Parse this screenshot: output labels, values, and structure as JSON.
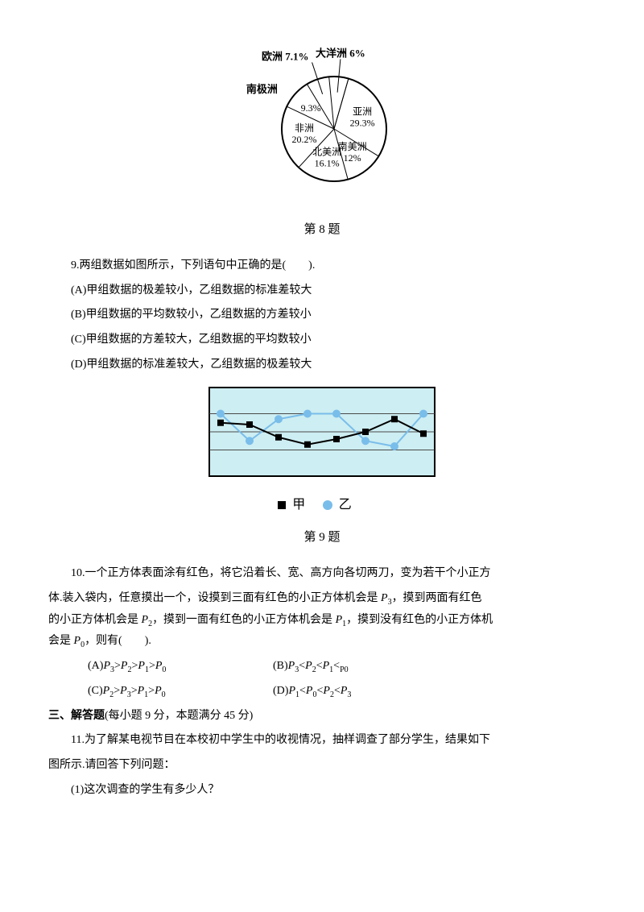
{
  "pie": {
    "caption": "第 8 题",
    "background": "#ffffff",
    "outline_color": "#000000",
    "slice_line_width": 1,
    "label_fontsize": 12,
    "outer_label_fontsize": 13,
    "slices": [
      {
        "name": "亚洲",
        "value": 29.3,
        "label1": "亚洲",
        "label2": "29.3%"
      },
      {
        "name": "南美洲",
        "value": 12.0,
        "label1": "南美洲",
        "label2": "12%"
      },
      {
        "name": "北美洲",
        "value": 16.1,
        "label1": "北美洲",
        "label2": "16.1%"
      },
      {
        "name": "非洲",
        "value": 20.2,
        "label1": "非洲",
        "label2": "20.2%"
      },
      {
        "name": "南极洲",
        "value": 9.3,
        "outer": "南极洲",
        "inner": "9.3%"
      },
      {
        "name": "欧洲",
        "value": 7.1,
        "outer": "欧洲 7.1%"
      },
      {
        "name": "大洋洲",
        "value": 6.0,
        "outer": "大洋洲 6%"
      }
    ]
  },
  "q9": {
    "stem": "9.两组数据如图所示，下列语句中正确的是(　　).",
    "a": "(A)甲组数据的极差较小，乙组数据的标准差较大",
    "b": "(B)甲组数据的平均数较小，乙组数据的方差较小",
    "c": "(C)甲组数据的方差较大，乙组数据的平均数较小",
    "d": "(D)甲组数据的标准差较大，乙组数据的极差较大"
  },
  "linechart": {
    "caption": "第 9 题",
    "bg": "#cdeef2",
    "border": "#000000",
    "grid_color": "#4a4a4a",
    "grid_rows": 4,
    "x_values": [
      1,
      2,
      3,
      4,
      5,
      6,
      7,
      8
    ],
    "series_jia": {
      "color": "#000000",
      "marker": "square",
      "marker_size": 8,
      "line_width": 2,
      "label": "甲",
      "y": [
        2.5,
        2.4,
        1.7,
        1.3,
        1.6,
        2.0,
        2.7,
        1.9
      ]
    },
    "series_yi": {
      "color": "#79bdea",
      "marker": "circle",
      "marker_size": 10,
      "line_width": 2,
      "label": "乙",
      "y": [
        3.0,
        1.5,
        2.7,
        3.0,
        3.0,
        1.5,
        1.2,
        3.0
      ]
    }
  },
  "q10": {
    "line1": "10.一个正方体表面涂有红色，将它沿着长、宽、高方向各切两刀，变为若干个小正方",
    "line2": "体.装入袋内，任意摸出一个，设摸到三面有红色的小正方体机会是 ",
    "line2_tail": "，摸到两面有红色",
    "line3_head": "的小正方体机会是 ",
    "line3_mid": "，摸到一面有红色的小正方体机会是 ",
    "line3_mid2": "，摸到没有红色的小正方体机",
    "line4_head": "会是 ",
    "line4_tail": "，则有(　　).",
    "p0": "P",
    "p1": "P",
    "p2": "P",
    "p3": "P",
    "optA_pre": "(A)",
    "optB_pre": "(B)",
    "optC_pre": "(C)",
    "optD_pre": "(D)"
  },
  "section3": {
    "heading": "三、解答题",
    "sub": "(每小题 9 分，本题满分 45 分)"
  },
  "q11": {
    "line1": "11.为了解某电视节目在本校初中学生中的收视情况，抽样调查了部分学生，结果如下",
    "line2": "图所示.请回答下列问题：",
    "sub1": "(1)这次调查的学生有多少人？"
  }
}
